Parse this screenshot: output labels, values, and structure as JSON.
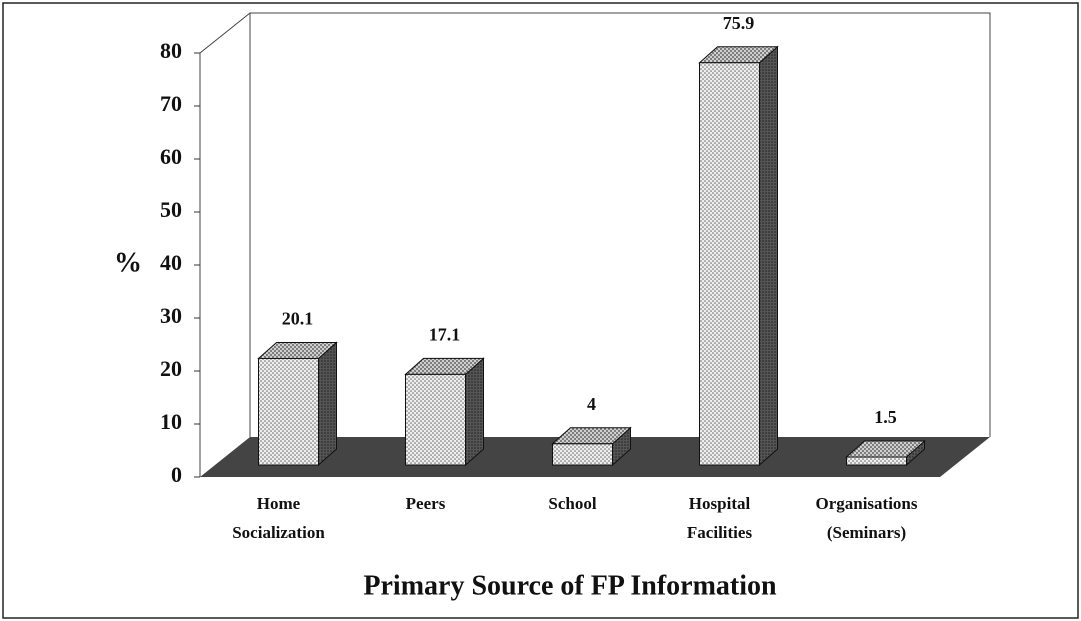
{
  "chart_data": {
    "type": "bar3d",
    "categories": [
      [
        "Home",
        "Socialization"
      ],
      [
        "Peers"
      ],
      [
        "School"
      ],
      [
        "Hospital",
        "Facilities"
      ],
      [
        "Organisations",
        "(Seminars)"
      ]
    ],
    "values": [
      20.1,
      17.1,
      4,
      75.9,
      1.5
    ],
    "ylim": [
      0,
      80
    ],
    "yticks": [
      0,
      10,
      20,
      30,
      40,
      50,
      60,
      70,
      80
    ],
    "ylabel": "%",
    "xlabel": "Primary Source of FP Information",
    "color": "#e6e6e6"
  }
}
